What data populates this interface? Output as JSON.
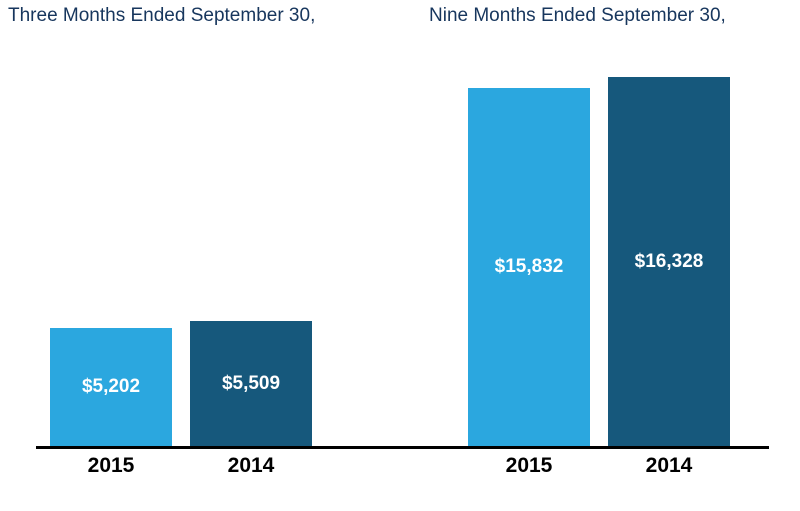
{
  "chart_data": {
    "type": "bar",
    "groups": [
      {
        "title": "Three Months Ended September 30,",
        "categories": [
          "2015",
          "2014"
        ],
        "values": [
          5202,
          5509
        ],
        "value_labels": [
          "$5,202",
          "$5,509"
        ]
      },
      {
        "title": "Nine Months Ended September 30,",
        "categories": [
          "2015",
          "2014"
        ],
        "values": [
          15832,
          16328
        ],
        "value_labels": [
          "$15,832",
          "$16,328"
        ]
      }
    ],
    "series_colors": {
      "2015": "#2BA7DF",
      "2014": "#16587C"
    },
    "value_label_color": "#FFFFFF",
    "title_color": "#17365D",
    "tick_label_color": "#000000",
    "axis_color": "#000000",
    "background": "#FFFFFF",
    "ylim": [
      0,
      16800
    ],
    "grid": false,
    "legend": "none",
    "xlabel": "",
    "ylabel": ""
  }
}
